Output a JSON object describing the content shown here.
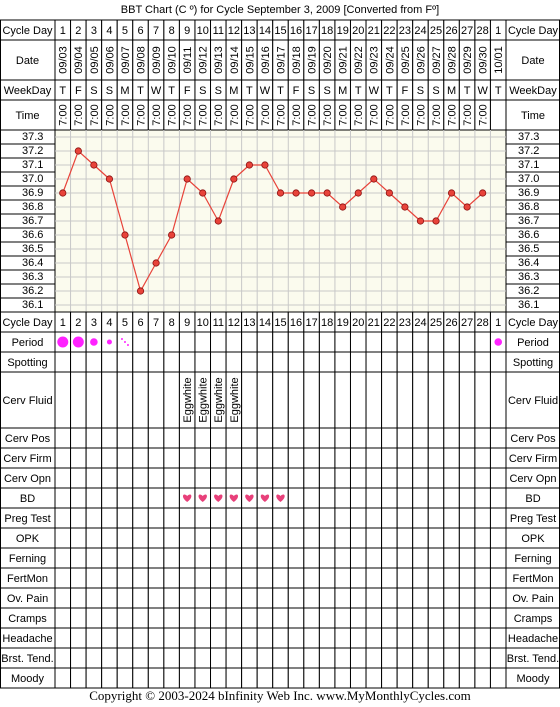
{
  "title": "BBT Chart (C º) for Cycle September 3, 2009  [Converted from Fº]",
  "labels": {
    "cycle_day": "Cycle Day",
    "date": "Date",
    "weekday": "WeekDay",
    "time": "Time",
    "period": "Period",
    "spotting": "Spotting",
    "cerv_fluid": "Cerv Fluid",
    "cerv_pos": "Cerv Pos",
    "cerv_firm": "Cerv Firm",
    "cerv_opn": "Cerv Opn",
    "bd": "BD",
    "preg_test": "Preg Test",
    "opk": "OPK",
    "ferning": "Ferning",
    "fertmon": "FertMon",
    "ov_pain": "Ov. Pain",
    "cramps": "Cramps",
    "headache": "Headache",
    "brst_tend": "Brst. Tend.",
    "moody": "Moody"
  },
  "dates": [
    "09/03",
    "09/04",
    "09/05",
    "09/06",
    "09/07",
    "09/08",
    "09/09",
    "09/10",
    "09/11",
    "09/12",
    "09/13",
    "09/14",
    "09/15",
    "09/16",
    "09/17",
    "09/18",
    "09/19",
    "09/20",
    "09/21",
    "09/22",
    "09/23",
    "09/24",
    "09/25",
    "09/26",
    "09/27",
    "09/28",
    "09/29",
    "09/30",
    "10/01"
  ],
  "weekdays": [
    "T",
    "F",
    "S",
    "S",
    "M",
    "T",
    "W",
    "T",
    "F",
    "S",
    "S",
    "M",
    "T",
    "W",
    "T",
    "F",
    "S",
    "S",
    "M",
    "T",
    "W",
    "T",
    "F",
    "S",
    "S",
    "M",
    "T",
    "W",
    "T"
  ],
  "times": [
    "7:00",
    "7:00",
    "7:00",
    "7:00",
    "7:00",
    "7:00",
    "7:00",
    "7:00",
    "7:00",
    "7:00",
    "7:00",
    "7:00",
    "7:00",
    "7:00",
    "7:00",
    "7:00",
    "7:00",
    "7:00",
    "7:00",
    "7:00",
    "7:00",
    "7:00",
    "7:00",
    "7:00",
    "7:00",
    "7:00",
    "7:00",
    "7:00",
    null
  ],
  "chart_data": {
    "type": "line",
    "categories": [
      1,
      2,
      3,
      4,
      5,
      6,
      7,
      8,
      9,
      10,
      11,
      12,
      13,
      14,
      15,
      16,
      17,
      18,
      19,
      20,
      21,
      22,
      23,
      24,
      25,
      26,
      27,
      28,
      1
    ],
    "values": [
      36.9,
      37.2,
      37.1,
      37.0,
      36.6,
      36.2,
      36.4,
      36.6,
      37.0,
      36.9,
      36.7,
      37.0,
      37.1,
      37.1,
      36.9,
      36.9,
      36.9,
      36.9,
      36.8,
      36.9,
      37.0,
      36.9,
      36.8,
      36.7,
      36.7,
      36.9,
      36.8,
      36.9,
      null
    ],
    "ylim": [
      36.05,
      37.35
    ],
    "yticks": [
      37.3,
      37.2,
      37.1,
      {
        "value": 37.0,
        "label": "37.0"
      },
      36.9,
      36.8,
      36.7,
      36.6,
      36.5,
      36.4,
      36.3,
      36.2,
      36.1
    ],
    "color": "#e8433a",
    "grid": true
  },
  "period": [
    4,
    4,
    3,
    2,
    1,
    null,
    null,
    null,
    null,
    null,
    null,
    null,
    null,
    null,
    null,
    null,
    null,
    null,
    null,
    null,
    null,
    null,
    null,
    null,
    null,
    null,
    null,
    null,
    3
  ],
  "period_color": "#ff22ff",
  "cerv_fluid": [
    null,
    null,
    null,
    null,
    null,
    null,
    null,
    null,
    "Eggwhite",
    "Eggwhite",
    "Eggwhite",
    "Eggwhite",
    null,
    null,
    null,
    null,
    null,
    null,
    null,
    null,
    null,
    null,
    null,
    null,
    null,
    null,
    null,
    null,
    null
  ],
  "bd": [
    null,
    null,
    null,
    null,
    null,
    null,
    null,
    null,
    1,
    1,
    1,
    1,
    1,
    1,
    1,
    null,
    null,
    null,
    null,
    null,
    null,
    null,
    null,
    null,
    null,
    null,
    null,
    null,
    null
  ],
  "bd_color": "#e8407a",
  "copyright": "Copyright © 2003-2024 bInfinity Web Inc.     www.MyMonthlyCycles.com"
}
